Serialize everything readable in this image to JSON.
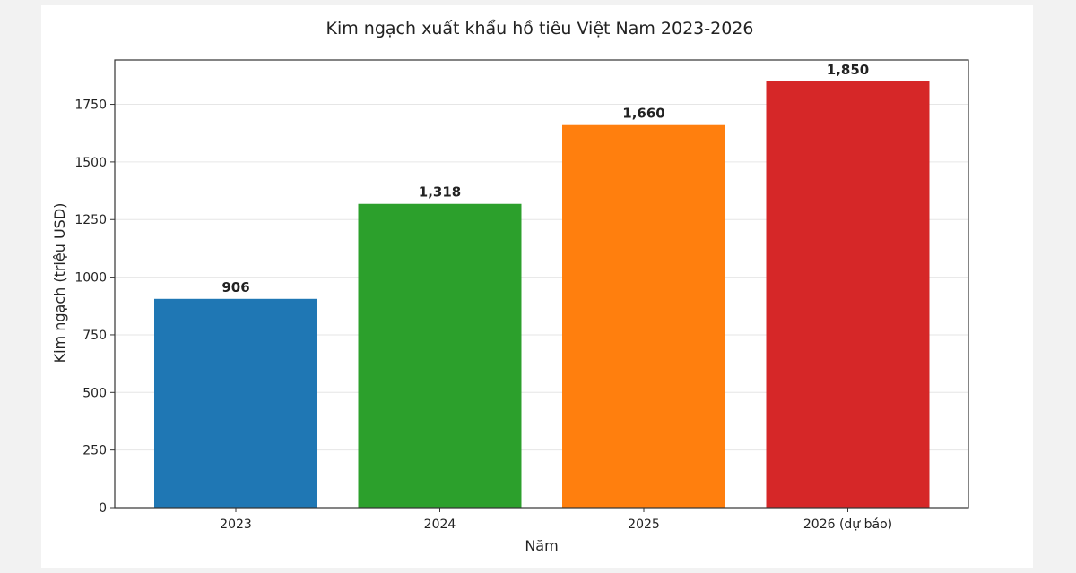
{
  "chart_data": {
    "type": "bar",
    "title": "Kim ngạch xuất khẩu hồ tiêu Việt Nam 2023-2026",
    "xlabel": "Năm",
    "ylabel": "Kim ngạch (triệu USD)",
    "categories": [
      "2023",
      "2024",
      "2025",
      "2026 (dự báo)"
    ],
    "values": [
      906,
      1318,
      1660,
      1850
    ],
    "data_labels": [
      "906",
      "1,318",
      "1,660",
      "1,850"
    ],
    "colors": [
      "#1f77b4",
      "#2ca02c",
      "#ff7f0e",
      "#d62728"
    ],
    "ylim": [
      0,
      1942.5
    ],
    "yticks": [
      0,
      250,
      500,
      750,
      1000,
      1250,
      1500,
      1750
    ],
    "grid": true,
    "legend": "none"
  }
}
